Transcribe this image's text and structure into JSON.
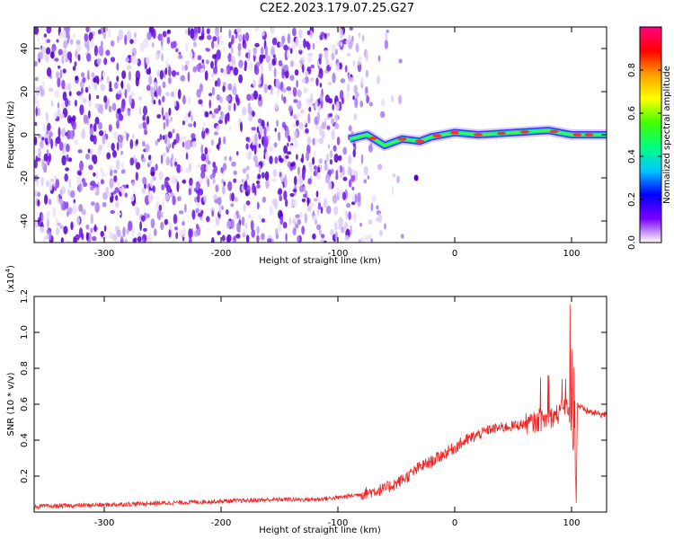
{
  "title": "C2E2.2023.179.07.25.G27",
  "colors": {
    "signal": "#ee2222",
    "noise_dark": "#5500cc",
    "noise_light": "#d9c6f7"
  },
  "chart_data": [
    {
      "type": "heatmap",
      "xlabel": "Height of straight line (km)",
      "ylabel": "Frequency (Hz)",
      "xlim": [
        -360,
        130
      ],
      "ylim": [
        -50,
        50
      ],
      "xticks": [
        -300,
        -200,
        -100,
        0,
        100
      ],
      "yticks": [
        -40,
        -20,
        0,
        20,
        40
      ],
      "colorbar": {
        "label": "Normalized spectral amplitude",
        "range": [
          0.0,
          1.0
        ],
        "ticks": [
          "0.0",
          "0.2",
          "0.4",
          "0.6",
          "0.8"
        ],
        "colormap": [
          "#ffffff",
          "#7a00ff",
          "#0000ff",
          "#00c8ff",
          "#00ff80",
          "#40ff00",
          "#ffff00",
          "#ffa000",
          "#ff0000",
          "#ff0080"
        ]
      },
      "grid": false,
      "band_centerline": [
        {
          "x": -90,
          "y": -2
        },
        {
          "x": -75,
          "y": 0
        },
        {
          "x": -60,
          "y": -5
        },
        {
          "x": -45,
          "y": -2
        },
        {
          "x": -30,
          "y": -3
        },
        {
          "x": -20,
          "y": -1
        },
        {
          "x": -10,
          "y": 0
        },
        {
          "x": 0,
          "y": 1
        },
        {
          "x": 20,
          "y": 0
        },
        {
          "x": 50,
          "y": 1
        },
        {
          "x": 80,
          "y": 2
        },
        {
          "x": 100,
          "y": 0
        },
        {
          "x": 130,
          "y": 0
        }
      ]
    },
    {
      "type": "line",
      "xlabel": "Height of straight line (km)",
      "ylabel": "SNR (10 * v/v)",
      "yscale_label": "(x10",
      "yscale_exp": "4",
      "yscale_close": ")",
      "xlim": [
        -360,
        130
      ],
      "ylim": [
        0,
        1.2
      ],
      "xticks": [
        -300,
        -200,
        -100,
        0,
        100
      ],
      "yticks": [
        "0.2",
        "0.4",
        "0.6",
        "0.8",
        "1.0",
        "1.2"
      ],
      "grid": false,
      "series": [
        {
          "x": [
            -360,
            -300,
            -250,
            -200,
            -150,
            -120,
            -100,
            -80,
            -60,
            -50,
            -40,
            -30,
            -20,
            -10,
            0,
            10,
            20,
            30,
            40,
            50,
            60,
            70,
            80,
            90,
            95,
            100,
            104,
            105,
            110,
            120,
            130
          ],
          "y": [
            0.03,
            0.04,
            0.05,
            0.06,
            0.07,
            0.07,
            0.08,
            0.1,
            0.13,
            0.16,
            0.2,
            0.25,
            0.28,
            0.32,
            0.36,
            0.4,
            0.43,
            0.46,
            0.47,
            0.48,
            0.49,
            0.5,
            0.52,
            0.55,
            0.6,
            0.5,
            0.08,
            0.6,
            0.57,
            0.55,
            0.54
          ]
        }
      ]
    }
  ]
}
